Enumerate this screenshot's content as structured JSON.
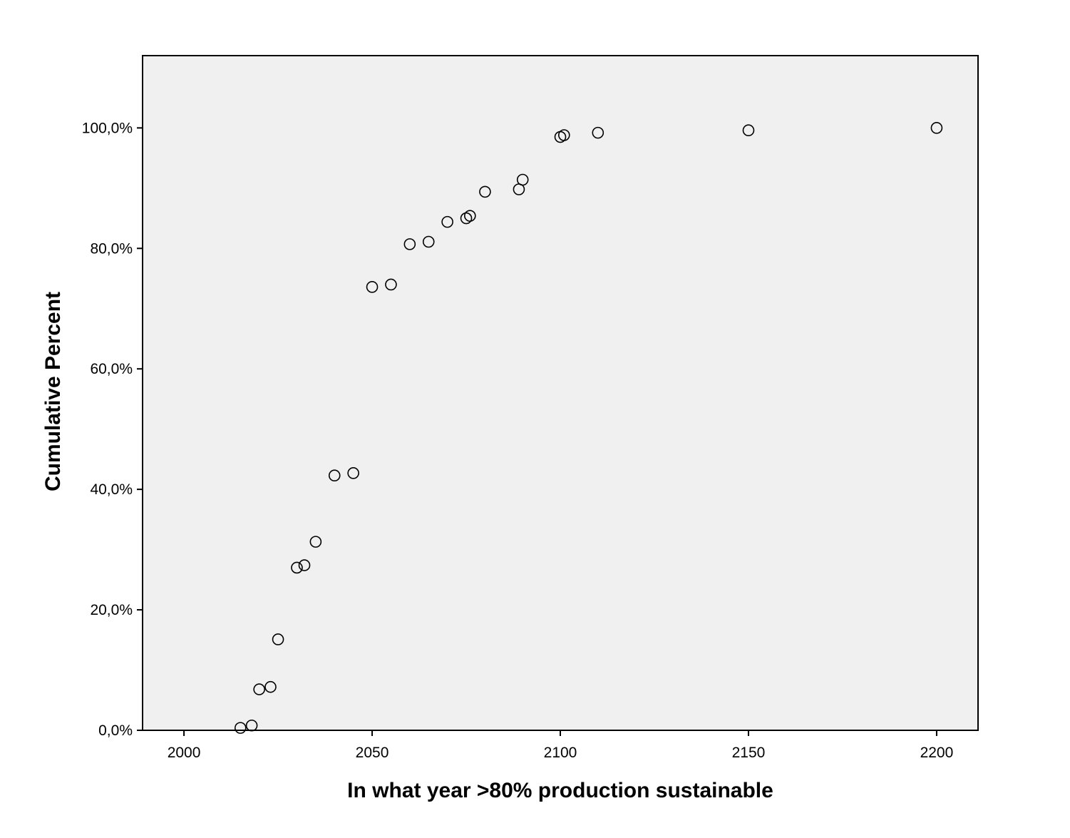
{
  "chart_data": {
    "type": "scatter",
    "xlabel": "In what year >80% production sustainable",
    "ylabel": "Cumulative Percent",
    "xlim": [
      1989,
      2211
    ],
    "ylim": [
      0,
      112
    ],
    "x_ticks": [
      2000,
      2050,
      2100,
      2150,
      2200
    ],
    "x_tick_labels": [
      "2000",
      "2050",
      "2100",
      "2150",
      "2200"
    ],
    "y_ticks": [
      0,
      20,
      40,
      60,
      80,
      100
    ],
    "y_tick_labels": [
      "0,0%",
      "20,0%",
      "40,0%",
      "60,0%",
      "80,0%",
      "100,0%"
    ],
    "grid": false,
    "legend": "none",
    "colors": {
      "plot_background": "#f0f0f0",
      "marker_stroke": "#000000",
      "marker_fill": "none"
    },
    "points": [
      {
        "x": 2015,
        "y": 0.4
      },
      {
        "x": 2018,
        "y": 0.8
      },
      {
        "x": 2020,
        "y": 6.8
      },
      {
        "x": 2023,
        "y": 7.2
      },
      {
        "x": 2025,
        "y": 15.1
      },
      {
        "x": 2030,
        "y": 27.0
      },
      {
        "x": 2032,
        "y": 27.4
      },
      {
        "x": 2035,
        "y": 31.3
      },
      {
        "x": 2040,
        "y": 42.3
      },
      {
        "x": 2045,
        "y": 42.7
      },
      {
        "x": 2050,
        "y": 73.6
      },
      {
        "x": 2055,
        "y": 74.0
      },
      {
        "x": 2060,
        "y": 80.7
      },
      {
        "x": 2065,
        "y": 81.1
      },
      {
        "x": 2070,
        "y": 84.4
      },
      {
        "x": 2075,
        "y": 85.0
      },
      {
        "x": 2076,
        "y": 85.4
      },
      {
        "x": 2080,
        "y": 89.4
      },
      {
        "x": 2089,
        "y": 89.8
      },
      {
        "x": 2090,
        "y": 91.4
      },
      {
        "x": 2100,
        "y": 98.5
      },
      {
        "x": 2101,
        "y": 98.8
      },
      {
        "x": 2110,
        "y": 99.2
      },
      {
        "x": 2150,
        "y": 99.6
      },
      {
        "x": 2200,
        "y": 100.0
      }
    ]
  }
}
